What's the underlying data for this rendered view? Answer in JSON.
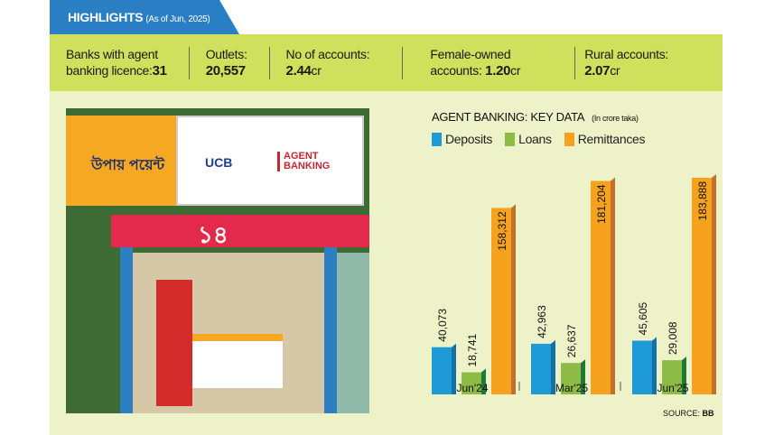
{
  "header": {
    "title": "HIGHLIGHTS",
    "subtitle": "(As of Jun, 2025)"
  },
  "stats": [
    {
      "label": "Banks with agent",
      "label2": "banking licence:",
      "value": "31",
      "unit": ""
    },
    {
      "label": "Outlets:",
      "label2": "",
      "value": "20,557",
      "unit": ""
    },
    {
      "label": "No of accounts:",
      "label2": "",
      "value": "2.44",
      "unit": "cr"
    },
    {
      "label": "Female-owned",
      "label2": "accounts: ",
      "value": "1.20",
      "unit": "cr"
    },
    {
      "label": "Rural accounts:",
      "label2": "",
      "value": "2.07",
      "unit": "cr"
    }
  ],
  "photo": {
    "sign_brand": "UCB",
    "sign_service": "AGENT BANKING",
    "outlet_brand": "উপায় পয়েন্ট",
    "price": "১৪"
  },
  "chart_data": {
    "type": "bar",
    "title": "AGENT BANKING: KEY DATA",
    "subtitle": "(In crore taka)",
    "categories": [
      "Jun'24",
      "Mar'25",
      "Jun'25"
    ],
    "series": [
      {
        "name": "Deposits",
        "color": "#1e9ad6",
        "values": [
          40073,
          42963,
          45605
        ],
        "labels": [
          "40,073",
          "42,963",
          "45,605"
        ]
      },
      {
        "name": "Loans",
        "color": "#8dbb45",
        "values": [
          18741,
          26637,
          29008
        ],
        "labels": [
          "18,741",
          "26,637",
          "29,008"
        ]
      },
      {
        "name": "Remittances",
        "color": "#f6a21e",
        "values": [
          158312,
          181204,
          183888
        ],
        "labels": [
          "158,312",
          "181,204",
          "183,888"
        ]
      }
    ],
    "ylim": [
      0,
      190000
    ],
    "source_label": "SOURCE: ",
    "source": "BB"
  }
}
